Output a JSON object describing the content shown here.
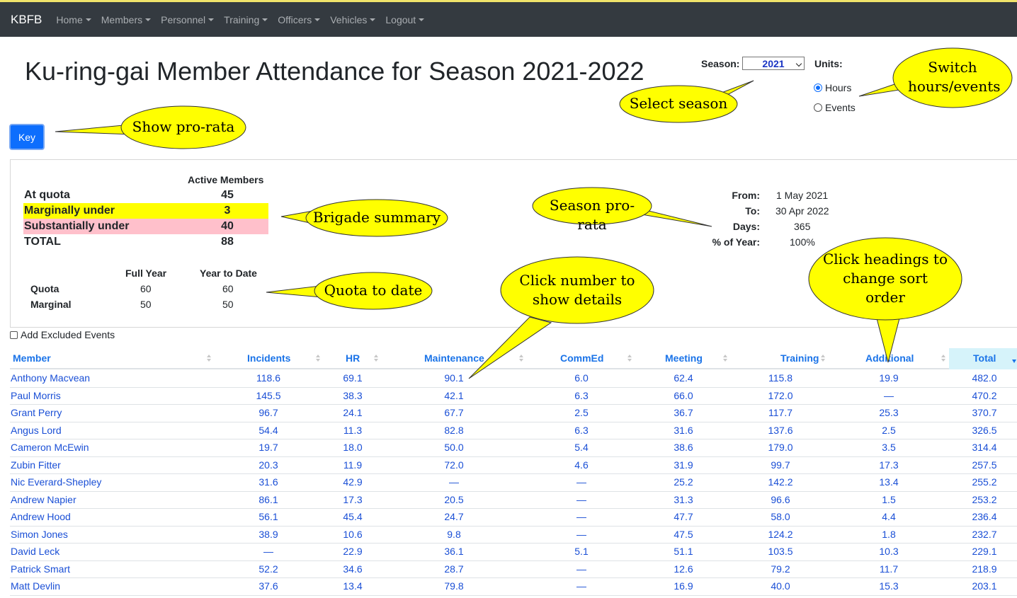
{
  "navbar": {
    "brand": "KBFB",
    "items": [
      {
        "label": "Home"
      },
      {
        "label": "Members"
      },
      {
        "label": "Personnel"
      },
      {
        "label": "Training"
      },
      {
        "label": "Officers"
      },
      {
        "label": "Vehicles"
      },
      {
        "label": "Logout"
      }
    ]
  },
  "page_title": "Ku-ring-gai Member Attendance for Season 2021-2022",
  "season": {
    "label": "Season:",
    "selected": "2021"
  },
  "units": {
    "label": "Units:",
    "options": [
      {
        "label": "Hours",
        "checked": true
      },
      {
        "label": "Events",
        "checked": false
      }
    ]
  },
  "key_button": "Key",
  "summary": {
    "header": "Active Members",
    "rows": [
      {
        "label": "At quota",
        "value": "45",
        "bg": ""
      },
      {
        "label": "Marginally under",
        "value": "3",
        "bg": "#ffff00"
      },
      {
        "label": "Substantially under",
        "value": "40",
        "bg": "#ffc0cb"
      },
      {
        "label": "TOTAL",
        "value": "88",
        "bg": ""
      }
    ]
  },
  "quota": {
    "headers": [
      "Full Year",
      "Year to Date"
    ],
    "rows": [
      {
        "label": "Quota",
        "full_year": "60",
        "ytd": "60"
      },
      {
        "label": "Marginal",
        "full_year": "50",
        "ytd": "50"
      }
    ]
  },
  "prorata": {
    "from_label": "From:",
    "from": "1 May 2021",
    "to_label": "To:",
    "to": "30 Apr 2022",
    "days_label": "Days:",
    "days": "365",
    "pct_label": "% of Year:",
    "pct": "100%"
  },
  "excluded_label": "Add Excluded Events",
  "table": {
    "columns": [
      "Member",
      "Incidents",
      "HR",
      "Maintenance",
      "CommEd",
      "Meeting",
      "Training",
      "Additional",
      "Total"
    ],
    "rows": [
      [
        "Anthony Macvean",
        "118.6",
        "69.1",
        "90.1",
        "6.0",
        "62.4",
        "115.8",
        "19.9",
        "482.0"
      ],
      [
        "Paul Morris",
        "145.5",
        "38.3",
        "42.1",
        "6.3",
        "66.0",
        "172.0",
        "—",
        "470.2"
      ],
      [
        "Grant Perry",
        "96.7",
        "24.1",
        "67.7",
        "2.5",
        "36.7",
        "117.7",
        "25.3",
        "370.7"
      ],
      [
        "Angus Lord",
        "54.4",
        "11.3",
        "82.8",
        "6.3",
        "31.6",
        "137.6",
        "2.5",
        "326.5"
      ],
      [
        "Cameron McEwin",
        "19.7",
        "18.0",
        "50.0",
        "5.4",
        "38.6",
        "179.0",
        "3.5",
        "314.4"
      ],
      [
        "Zubin Fitter",
        "20.3",
        "11.9",
        "72.0",
        "4.6",
        "31.9",
        "99.7",
        "17.3",
        "257.5"
      ],
      [
        "Nic Everard-Shepley",
        "31.6",
        "42.9",
        "—",
        "—",
        "25.2",
        "142.2",
        "13.4",
        "255.2"
      ],
      [
        "Andrew Napier",
        "86.1",
        "17.3",
        "20.5",
        "—",
        "31.3",
        "96.6",
        "1.5",
        "253.2"
      ],
      [
        "Andrew Hood",
        "56.1",
        "45.4",
        "24.7",
        "—",
        "47.7",
        "58.0",
        "4.4",
        "236.4"
      ],
      [
        "Simon Jones",
        "38.9",
        "10.6",
        "9.8",
        "—",
        "47.5",
        "124.2",
        "1.8",
        "232.7"
      ],
      [
        "David Leck",
        "—",
        "22.9",
        "36.1",
        "5.1",
        "51.1",
        "103.5",
        "10.3",
        "229.1"
      ],
      [
        "Patrick Smart",
        "52.2",
        "34.6",
        "28.7",
        "—",
        "12.6",
        "79.2",
        "11.7",
        "218.9"
      ],
      [
        "Matt Devlin",
        "37.6",
        "13.4",
        "79.8",
        "—",
        "16.9",
        "40.0",
        "15.3",
        "203.1"
      ]
    ]
  },
  "callouts": {
    "show_prorata": "Show pro-rata",
    "select_season": "Select season",
    "switch_units": "Switch hours/events",
    "brigade_summary": "Brigade summary",
    "season_prorata": "Season pro-rata",
    "quota_to_date": "Quota to date",
    "click_number": "Click number to show details",
    "click_headings": "Click headings to change sort order"
  }
}
